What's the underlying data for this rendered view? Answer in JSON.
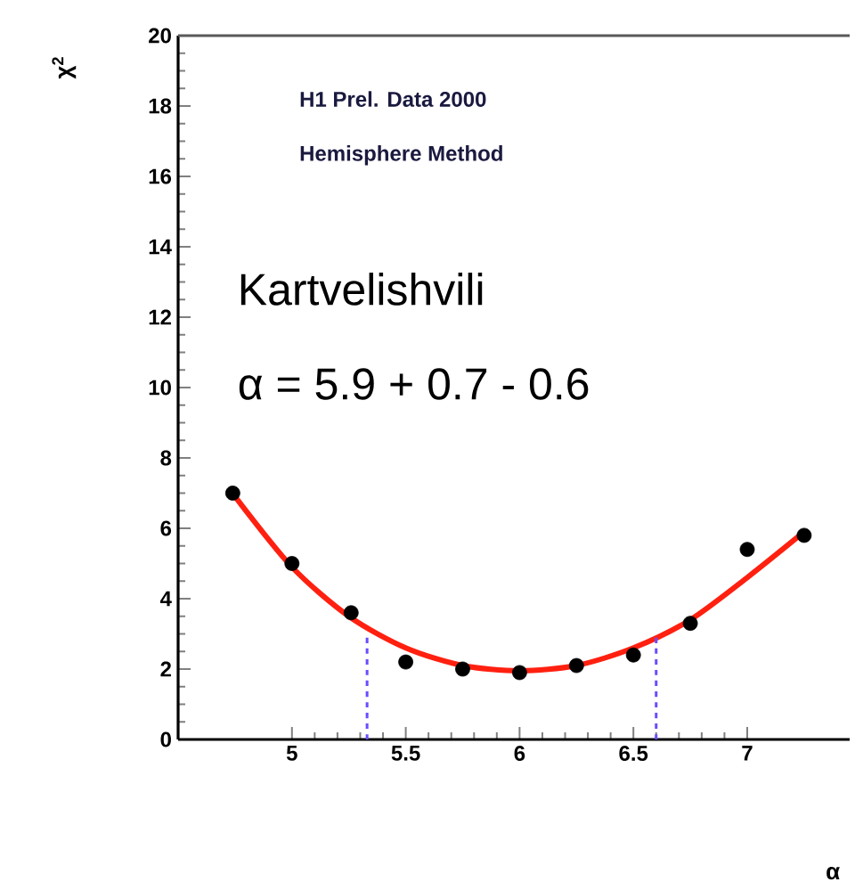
{
  "chart_data": {
    "type": "scatter",
    "xlabel": "α",
    "ylabel": "χ$^{2}$",
    "annotations": [
      "H1 Prel. Data 2000",
      "Hemisphere Method",
      "Kartvelishvili",
      "α = 5.9 + 0.7 - 0.6"
    ],
    "xlim": [
      4.5,
      7.45
    ],
    "xticks": [
      5,
      5.5,
      6,
      6.5,
      7
    ],
    "ylim": [
      0,
      20
    ],
    "yticks": [
      0,
      2,
      4,
      6,
      8,
      10,
      12,
      14,
      16,
      18,
      20
    ],
    "grid": false,
    "series": [
      {
        "marker": "circle",
        "color": "#000000",
        "x": [
          4.74,
          5.0,
          5.26,
          5.5,
          5.75,
          6.0,
          6.25,
          6.5,
          6.75,
          7.0,
          7.25
        ],
        "values": [
          7.0,
          5.0,
          3.6,
          2.2,
          2.0,
          1.9,
          2.1,
          2.4,
          3.3,
          5.4,
          5.8
        ]
      },
      {
        "type": "line",
        "marker": "none",
        "color": "#ff2010",
        "x": [
          4.75,
          5.0,
          5.25,
          5.5,
          5.75,
          6.0,
          6.25,
          6.5,
          6.75,
          7.0,
          7.25
        ],
        "values": [
          6.9,
          4.9,
          3.5,
          2.6,
          2.1,
          1.95,
          2.1,
          2.6,
          3.4,
          4.6,
          5.9
        ]
      },
      {
        "type": "line",
        "marker": "none",
        "line_style": "dashed",
        "color": "#6a4cff",
        "x": [
          5.33,
          5.33
        ],
        "values": [
          0,
          3.0
        ]
      },
      {
        "type": "line",
        "marker": "none",
        "line_style": "dashed",
        "color": "#6a4cff",
        "x": [
          6.6,
          6.6
        ],
        "values": [
          0,
          3.0
        ]
      }
    ]
  }
}
